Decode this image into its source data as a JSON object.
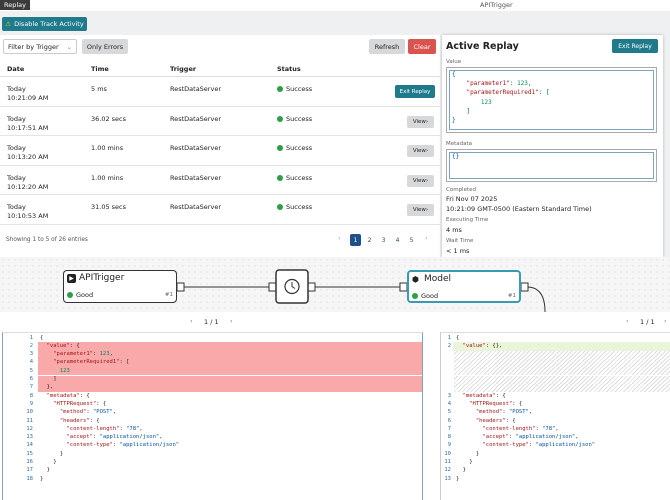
{
  "top_bar": {
    "tab": "Replay",
    "title": "APITrigger"
  },
  "toolbar": {
    "track_button": "Disable Track Activity",
    "filter": "Filter by Trigger",
    "only_errors": "Only Errors",
    "refresh": "Refresh",
    "clear": "Clear"
  },
  "table": {
    "columns": [
      "Date",
      "Time",
      "Trigger",
      "Status"
    ],
    "rows": [
      {
        "date": "Today",
        "time_of_day": "10:21:09 AM",
        "duration": "5 ms",
        "trigger": "RestDataServer",
        "status": "Success",
        "action": "Exit Replay"
      },
      {
        "date": "Today",
        "time_of_day": "10:17:51 AM",
        "duration": "36.02 secs",
        "trigger": "RestDataServer",
        "status": "Success",
        "action": "View"
      },
      {
        "date": "Today",
        "time_of_day": "10:13:20 AM",
        "duration": "1.00 mins",
        "trigger": "RestDataServer",
        "status": "Success",
        "action": "View"
      },
      {
        "date": "Today",
        "time_of_day": "10:12:20 AM",
        "duration": "1.00 mins",
        "trigger": "RestDataServer",
        "status": "Success",
        "action": "View"
      },
      {
        "date": "Today",
        "time_of_day": "10:10:53 AM",
        "duration": "31.05 secs",
        "trigger": "RestDataServer",
        "status": "Success",
        "action": "View"
      }
    ]
  },
  "footer": {
    "summary": "Showing 1 to 5 of 26 entries",
    "pages": [
      "1",
      "2",
      "3",
      "4",
      "5"
    ]
  },
  "active_replay": {
    "title": "Active Replay",
    "exit_button": "Exit Replay",
    "value_label": "Value",
    "value_lines": [
      "{",
      "    \"parameter1\": 123,",
      "    \"parameterRequired1\": [",
      "        123",
      "    ]",
      "}"
    ],
    "metadata_label": "Metadata",
    "metadata_text": "{}",
    "completed_label": "Completed",
    "completed_date": "Fri Nov 07 2025",
    "completed_time": "10:21:09 GMT-0500 (Eastern Standard Time)",
    "executing_label": "Executing Time",
    "executing_value": "4 ms",
    "wait_label": "Wait Time",
    "wait_value": "< 1 ms"
  },
  "flow": {
    "nodes": [
      {
        "label": "APITrigger",
        "status": "Good",
        "index": "#1"
      },
      {
        "label": "Model",
        "status": "Good",
        "index": "#1"
      }
    ]
  },
  "diff": {
    "left": {
      "page": "1 / 1",
      "lines": [
        {
          "number": "1",
          "code": "{"
        },
        {
          "number": "2",
          "code": "  \"value\": {",
          "highlight": "removed"
        },
        {
          "number": "3",
          "code": "    \"parameter1\": 123,",
          "highlight": "removed"
        },
        {
          "number": "4",
          "code": "    \"parameterRequired1\": [",
          "highlight": "removed"
        },
        {
          "number": "5",
          "code": "      123",
          "highlight": "removed"
        },
        {
          "number": "6",
          "code": "    ]",
          "highlight": "removed"
        },
        {
          "number": "7",
          "code": "  },",
          "highlight": "removed"
        },
        {
          "number": "8",
          "code": "  \"metadata\": {"
        },
        {
          "number": "9",
          "code": "    \"HTTPRequest\": {"
        },
        {
          "number": "10",
          "code": "      \"method\": \"POST\","
        },
        {
          "number": "11",
          "code": "      \"headers\": {"
        },
        {
          "number": "12",
          "code": "        \"content-length\": \"78\","
        },
        {
          "number": "13",
          "code": "        \"accept\": \"application/json\","
        },
        {
          "number": "14",
          "code": "        \"content-type\": \"application/json\""
        },
        {
          "number": "15",
          "code": "      }"
        },
        {
          "number": "16",
          "code": "    }"
        },
        {
          "number": "17",
          "code": "  }"
        },
        {
          "number": "18",
          "code": "}"
        }
      ]
    },
    "right": {
      "page": "1 / 1",
      "lines": [
        {
          "number": "1",
          "code": "{"
        },
        {
          "number": "2",
          "code": "  \"value\": {},",
          "highlight": "added"
        },
        null,
        null,
        null,
        null,
        null,
        {
          "number": "3",
          "code": "  \"metadata\": {"
        },
        {
          "number": "4",
          "code": "    \"HTTPRequest\": {"
        },
        {
          "number": "5",
          "code": "      \"method\": \"POST\","
        },
        {
          "number": "6",
          "code": "      \"headers\": {"
        },
        {
          "number": "7",
          "code": "        \"content-length\": \"78\","
        },
        {
          "number": "8",
          "code": "        \"accept\": \"application/json\","
        },
        {
          "number": "9",
          "code": "        \"content-type\": \"application/json\""
        },
        {
          "number": "10",
          "code": "      }"
        },
        {
          "number": "11",
          "code": "    }"
        },
        {
          "number": "12",
          "code": "  }"
        },
        {
          "number": "13",
          "code": "}"
        }
      ]
    }
  }
}
